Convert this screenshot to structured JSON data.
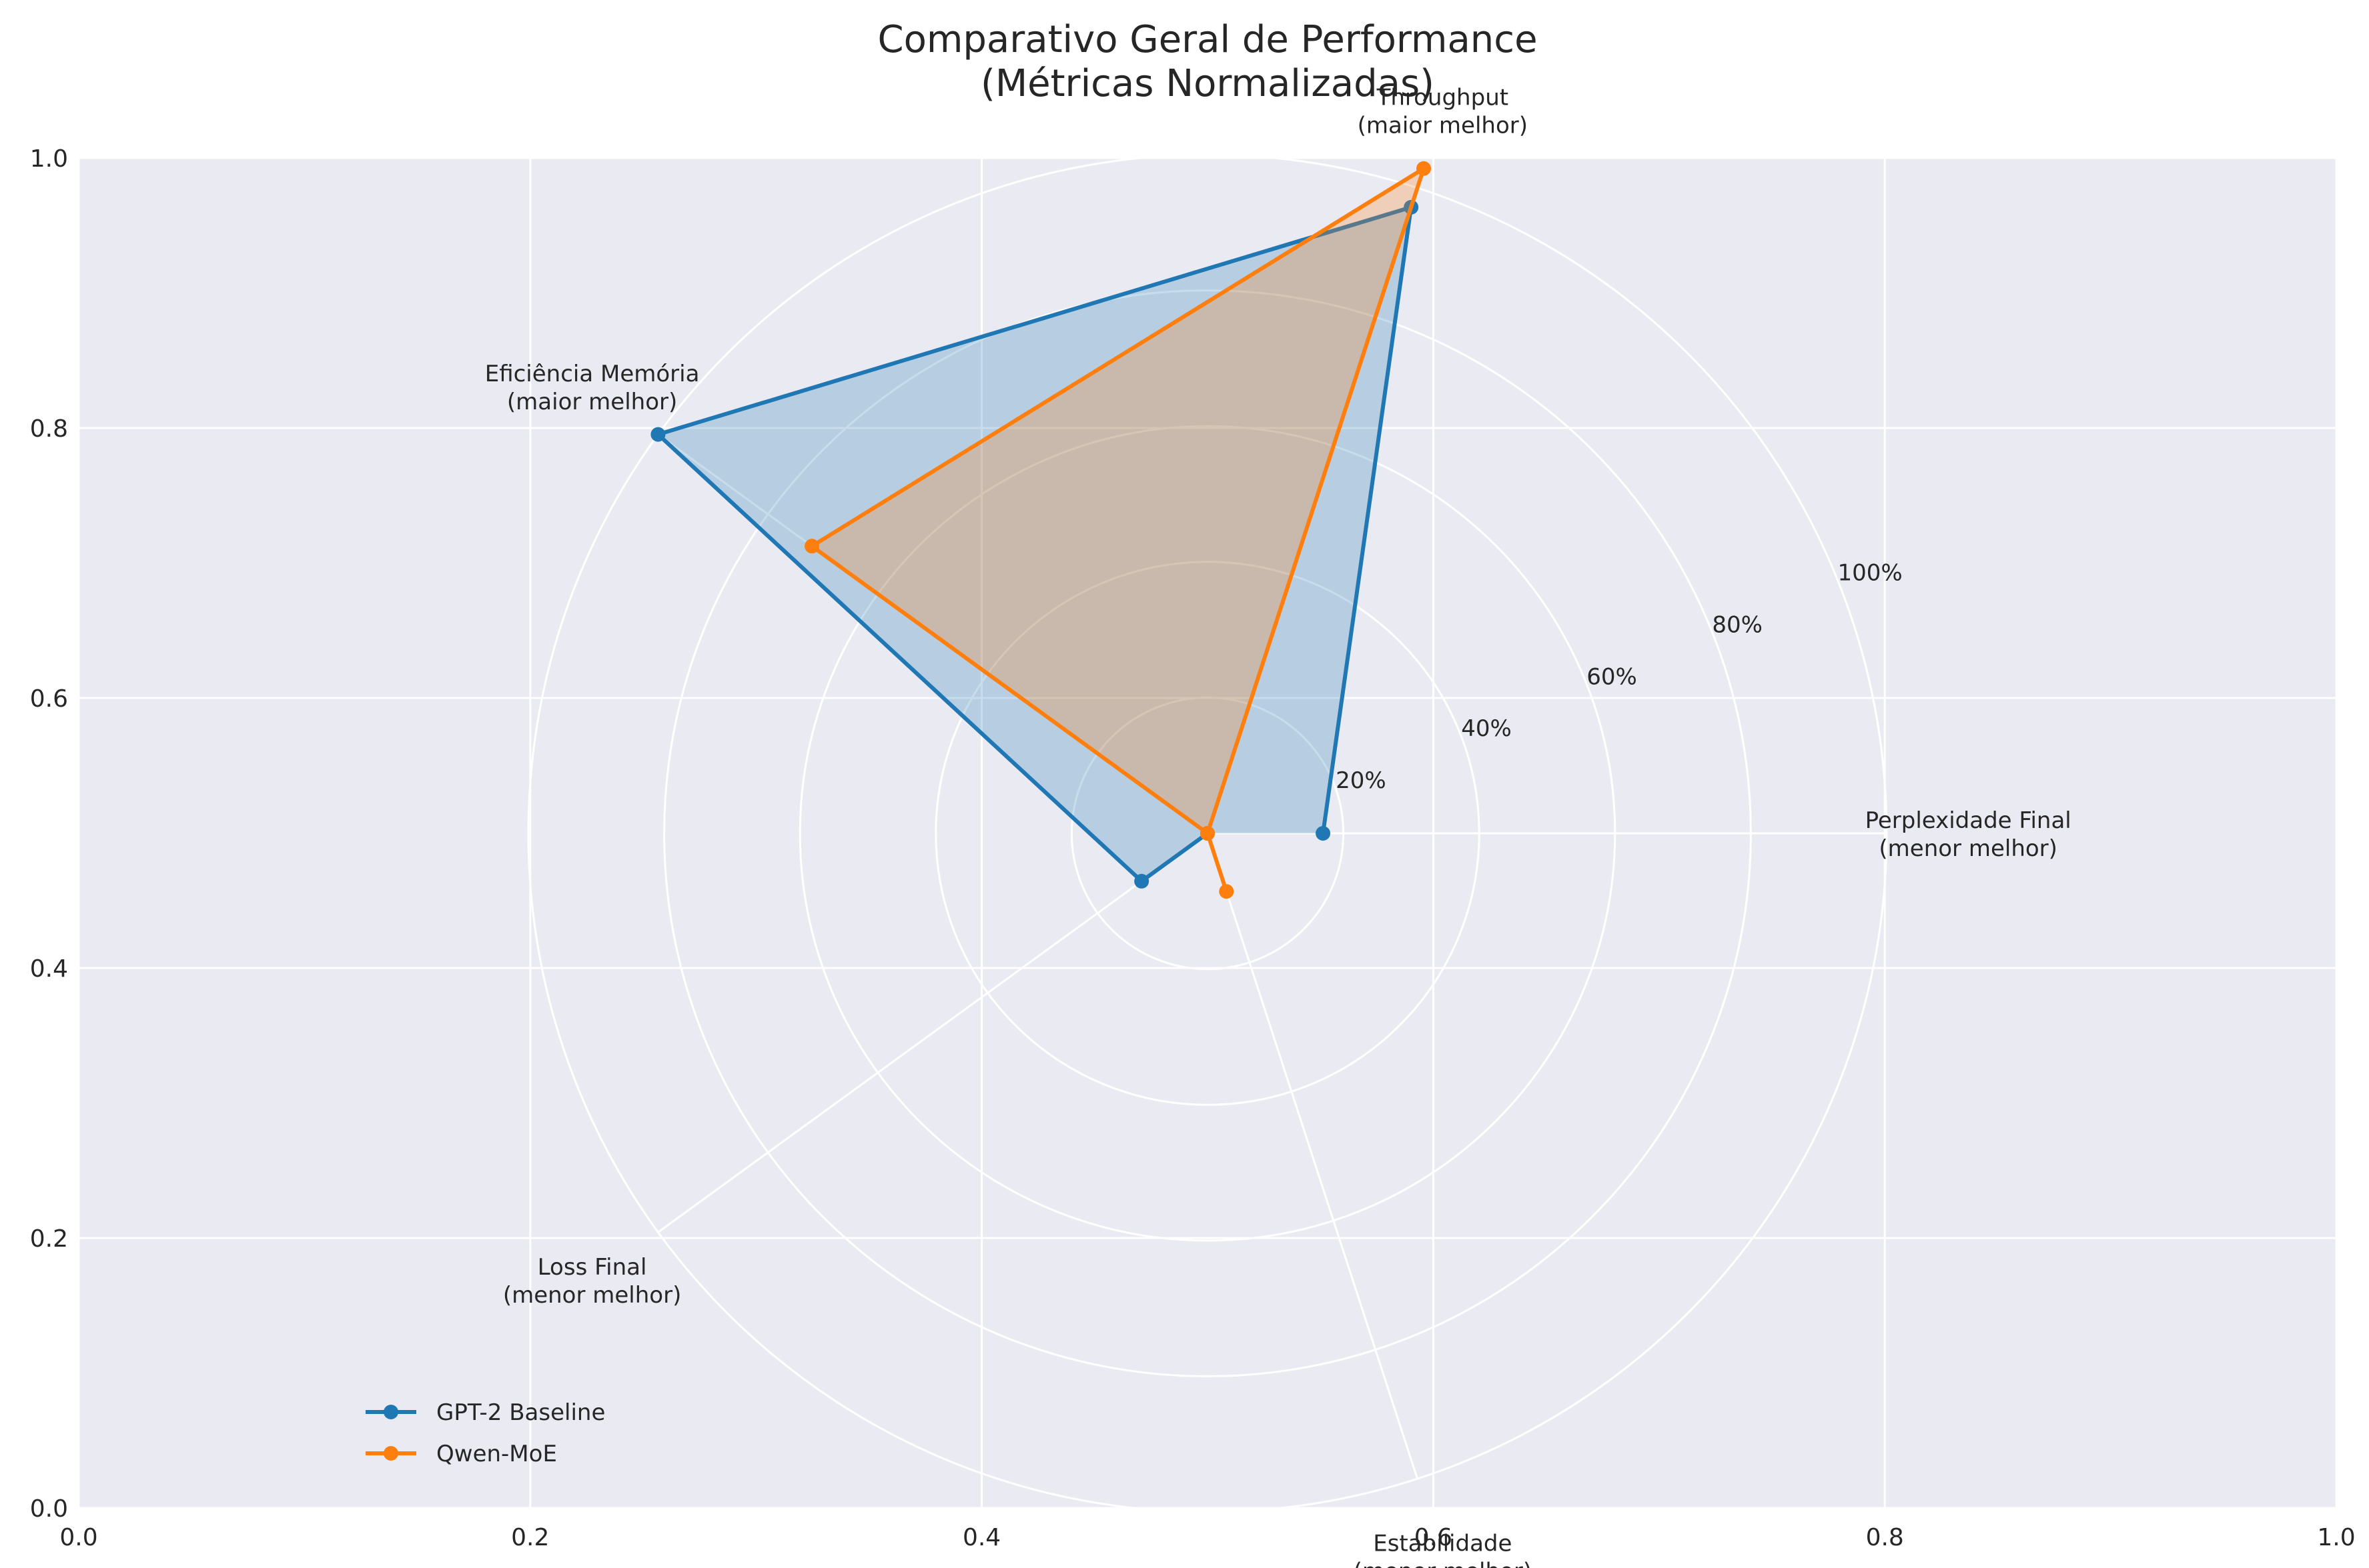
{
  "chart_data": {
    "type": "radar",
    "title": [
      "Comparativo Geral de Performance",
      "(Métricas Normalizadas)"
    ],
    "background_axes": {
      "xlim": [
        0,
        1
      ],
      "ylim": [
        0,
        1
      ],
      "xticks": [
        "0.0",
        "0.2",
        "0.4",
        "0.6",
        "0.8",
        "1.0"
      ],
      "yticks": [
        "0.0",
        "0.2",
        "0.4",
        "0.6",
        "0.8",
        "1.0"
      ],
      "grid": true
    },
    "radial_ticks": [
      "20%",
      "40%",
      "60%",
      "80%",
      "100%"
    ],
    "radial_range": [
      0,
      1
    ],
    "categories": [
      {
        "line1": "Perplexidade Final",
        "line2": "(menor melhor)",
        "angle_deg": 0
      },
      {
        "line1": "Throughput",
        "line2": "(maior melhor)",
        "angle_deg": 72
      },
      {
        "line1": "Eficiência Memória",
        "line2": "(maior melhor)",
        "angle_deg": 144
      },
      {
        "line1": "Loss Final",
        "line2": "(menor melhor)",
        "angle_deg": 216
      },
      {
        "line1": "Estabilidade",
        "line2": "(menor melhor)",
        "angle_deg": 288
      }
    ],
    "series": [
      {
        "name": "GPT-2 Baseline",
        "color": "#1f77b4",
        "values": [
          0.17,
          0.97,
          1.0,
          0.12,
          0.0
        ]
      },
      {
        "name": "Qwen-MoE",
        "color": "#ff7f0e",
        "values": [
          0.0,
          1.03,
          0.72,
          0.0,
          0.09
        ]
      }
    ],
    "legend": "lower-left",
    "colors": {
      "background": "#eaeaf2",
      "grid": "#ffffff"
    }
  }
}
